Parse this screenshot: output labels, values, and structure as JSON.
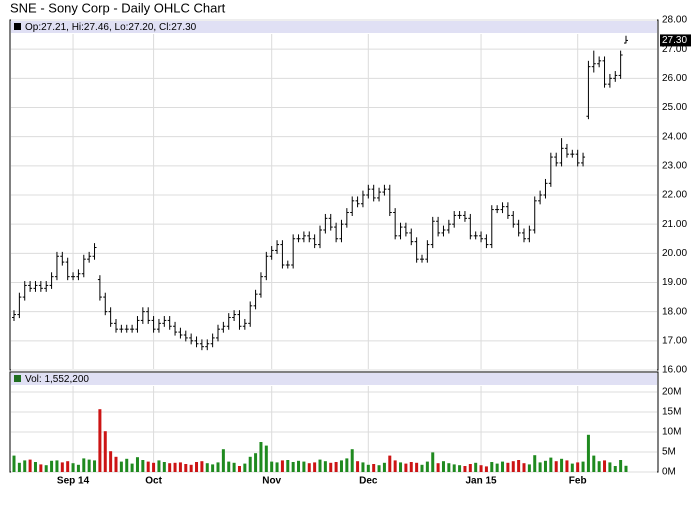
{
  "chart_data": [
    {
      "type": "ohlc",
      "title": "SNE - Sony Corp - Daily OHLC Chart",
      "legend": "Op:27.21, Hi:27.46, Lo:27.20, Cl:27.30",
      "color": "#000000",
      "grid": true,
      "categories": [
        null,
        null,
        null,
        null,
        null,
        null,
        null,
        null,
        null,
        null,
        null,
        "Sep 14",
        null,
        null,
        null,
        null,
        null,
        null,
        null,
        null,
        null,
        null,
        null,
        null,
        null,
        null,
        "Oct",
        null,
        null,
        null,
        null,
        null,
        null,
        null,
        null,
        null,
        null,
        null,
        null,
        null,
        null,
        null,
        null,
        null,
        null,
        null,
        null,
        null,
        "Nov",
        null,
        null,
        null,
        null,
        null,
        null,
        null,
        null,
        null,
        null,
        null,
        null,
        null,
        null,
        null,
        null,
        null,
        "Dec",
        null,
        null,
        null,
        null,
        null,
        null,
        null,
        null,
        null,
        null,
        null,
        null,
        null,
        null,
        null,
        null,
        null,
        null,
        null,
        null,
        "Jan 15",
        null,
        null,
        null,
        null,
        null,
        null,
        null,
        null,
        null,
        null,
        null,
        null,
        null,
        null,
        null,
        null,
        null,
        "Feb",
        null,
        null,
        null,
        null,
        null,
        null,
        null,
        null,
        null
      ],
      "open": [
        17.8,
        17.9,
        18.5,
        18.9,
        18.8,
        18.9,
        18.8,
        18.9,
        19.2,
        19.9,
        19.7,
        19.2,
        19.2,
        19.3,
        19.8,
        19.9,
        19.1,
        18.5,
        18.0,
        17.6,
        17.4,
        17.4,
        17.4,
        17.4,
        17.7,
        18.0,
        17.7,
        17.4,
        17.6,
        17.7,
        17.5,
        17.3,
        17.2,
        17.1,
        17.0,
        16.9,
        16.8,
        16.9,
        17.1,
        17.4,
        17.5,
        17.8,
        17.9,
        17.5,
        17.6,
        18.2,
        18.6,
        19.2,
        19.9,
        20.1,
        20.3,
        19.6,
        19.6,
        20.5,
        20.5,
        20.6,
        20.5,
        20.3,
        20.8,
        21.2,
        20.9,
        20.5,
        21.0,
        21.4,
        21.8,
        21.7,
        22.0,
        22.2,
        21.9,
        22.1,
        22.2,
        21.4,
        20.6,
        20.9,
        20.7,
        20.4,
        19.8,
        19.8,
        20.3,
        21.1,
        20.7,
        20.8,
        21.0,
        21.3,
        21.3,
        21.2,
        20.6,
        20.6,
        20.5,
        20.3,
        21.5,
        21.5,
        21.6,
        21.3,
        21.0,
        20.7,
        20.5,
        20.8,
        21.8,
        22.0,
        22.4,
        23.3,
        23.1,
        23.6,
        23.4,
        23.4,
        23.1,
        24.7,
        26.4,
        26.5,
        26.6,
        25.8,
        26.0,
        26.1,
        27.21
      ],
      "high": [
        18.05,
        18.65,
        19.05,
        19.05,
        19.05,
        19.05,
        19.05,
        19.35,
        20.05,
        20.05,
        19.85,
        19.35,
        19.45,
        19.95,
        20.05,
        20.35,
        19.25,
        18.65,
        18.15,
        17.75,
        17.55,
        17.55,
        17.55,
        17.85,
        18.15,
        18.15,
        17.85,
        17.75,
        17.85,
        17.85,
        17.65,
        17.45,
        17.35,
        17.25,
        17.15,
        17.05,
        17.05,
        17.25,
        17.55,
        17.65,
        17.95,
        18.05,
        18.05,
        17.75,
        18.35,
        18.75,
        19.35,
        20.05,
        20.25,
        20.45,
        20.45,
        19.75,
        20.65,
        20.65,
        20.75,
        20.75,
        20.65,
        20.95,
        21.35,
        21.35,
        21.05,
        21.15,
        21.55,
        21.95,
        21.95,
        22.15,
        22.35,
        22.35,
        22.25,
        22.35,
        22.35,
        21.55,
        21.05,
        21.05,
        20.85,
        20.55,
        19.95,
        20.45,
        21.25,
        21.25,
        20.95,
        21.15,
        21.45,
        21.45,
        21.45,
        21.35,
        20.75,
        20.75,
        20.65,
        21.65,
        21.65,
        21.75,
        21.75,
        21.45,
        21.15,
        20.85,
        20.95,
        21.95,
        22.15,
        22.55,
        23.45,
        23.45,
        23.95,
        23.75,
        23.55,
        23.55,
        23.45,
        26.6,
        26.95,
        26.75,
        26.75,
        26.15,
        26.25,
        26.95,
        27.46
      ],
      "low": [
        17.68,
        17.78,
        18.38,
        18.68,
        18.68,
        18.68,
        18.68,
        18.78,
        19.08,
        19.58,
        19.08,
        19.08,
        19.08,
        19.18,
        19.68,
        19.78,
        18.38,
        17.88,
        17.48,
        17.28,
        17.28,
        17.28,
        17.28,
        17.28,
        17.58,
        17.58,
        17.28,
        17.28,
        17.48,
        17.38,
        17.18,
        17.08,
        16.98,
        16.88,
        16.78,
        16.68,
        16.68,
        16.78,
        16.98,
        17.28,
        17.38,
        17.68,
        17.38,
        17.38,
        17.48,
        18.08,
        18.48,
        19.08,
        19.78,
        19.98,
        19.48,
        19.48,
        19.48,
        20.38,
        20.38,
        20.38,
        20.18,
        20.18,
        20.68,
        20.78,
        20.38,
        20.38,
        20.88,
        21.28,
        21.58,
        21.58,
        21.88,
        21.78,
        21.78,
        21.98,
        21.28,
        20.48,
        20.48,
        20.58,
        20.28,
        19.68,
        19.68,
        19.68,
        20.18,
        20.58,
        20.58,
        20.68,
        20.88,
        21.18,
        21.08,
        20.48,
        20.48,
        20.38,
        20.18,
        20.18,
        21.38,
        21.38,
        21.18,
        20.88,
        20.58,
        20.38,
        20.38,
        20.68,
        21.68,
        21.88,
        22.28,
        22.98,
        22.98,
        23.28,
        23.28,
        22.98,
        22.98,
        24.6,
        26.2,
        26.38,
        25.68,
        25.68,
        25.88,
        25.98,
        27.2
      ],
      "close": [
        17.9,
        18.5,
        18.9,
        18.8,
        18.9,
        18.8,
        18.9,
        19.2,
        19.9,
        19.7,
        19.2,
        19.2,
        19.3,
        19.8,
        19.9,
        20.2,
        18.5,
        18.0,
        17.6,
        17.4,
        17.4,
        17.4,
        17.4,
        17.7,
        18.0,
        17.7,
        17.4,
        17.6,
        17.7,
        17.5,
        17.3,
        17.2,
        17.1,
        17.0,
        16.9,
        16.8,
        16.9,
        17.1,
        17.4,
        17.5,
        17.8,
        17.9,
        17.5,
        17.6,
        18.2,
        18.6,
        19.2,
        19.9,
        20.1,
        20.3,
        19.6,
        19.6,
        20.5,
        20.5,
        20.6,
        20.5,
        20.3,
        20.8,
        21.2,
        20.9,
        20.5,
        21.0,
        21.4,
        21.8,
        21.7,
        22.0,
        22.2,
        21.9,
        22.1,
        22.2,
        21.4,
        20.6,
        20.9,
        20.7,
        20.4,
        19.8,
        19.8,
        20.3,
        21.1,
        20.7,
        20.8,
        21.0,
        21.3,
        21.3,
        21.2,
        20.6,
        20.6,
        20.5,
        20.3,
        21.5,
        21.5,
        21.6,
        21.3,
        21.0,
        20.7,
        20.5,
        20.8,
        21.8,
        22.0,
        22.4,
        23.3,
        23.1,
        23.6,
        23.4,
        23.4,
        23.1,
        23.3,
        26.4,
        26.5,
        26.6,
        25.8,
        26.0,
        26.1,
        26.8,
        27.3
      ],
      "last_price": {
        "value": 27.3,
        "label": "27.30"
      },
      "ylim": [
        16,
        28
      ],
      "yticks": [
        {
          "value": 16,
          "label": "16.00"
        },
        {
          "value": 17,
          "label": "17.00"
        },
        {
          "value": 18,
          "label": "18.00"
        },
        {
          "value": 19,
          "label": "19.00"
        },
        {
          "value": 20,
          "label": "20.00"
        },
        {
          "value": 21,
          "label": "21.00"
        },
        {
          "value": 22,
          "label": "22.00"
        },
        {
          "value": 23,
          "label": "23.00"
        },
        {
          "value": 24,
          "label": "24.00"
        },
        {
          "value": 25,
          "label": "25.00"
        },
        {
          "value": 26,
          "label": "26.00"
        },
        {
          "value": 27,
          "label": "27.00"
        },
        {
          "value": 28,
          "label": "28.00"
        }
      ]
    },
    {
      "type": "bar",
      "legend": "Vol: 1,552,200",
      "up_color": "#1f8a1f",
      "down_color": "#cc1414",
      "legend_color": "#1f6e1f",
      "grid": true,
      "values": [
        4100000,
        2300000,
        2900000,
        3100000,
        2500000,
        1900000,
        1700000,
        2800000,
        2900000,
        2400000,
        2700000,
        2200000,
        1800000,
        3400000,
        3100000,
        2900000,
        15700000,
        10200000,
        5200000,
        3800000,
        2600000,
        3300000,
        2100000,
        3700000,
        3000000,
        2600000,
        2300000,
        2900000,
        2500000,
        2200000,
        2300000,
        2400000,
        2000000,
        1800000,
        2500000,
        2700000,
        2200000,
        1900000,
        2400000,
        5700000,
        2600000,
        2300000,
        1500000,
        2100000,
        3800000,
        4700000,
        7500000,
        6600000,
        2600000,
        2400000,
        2900000,
        3000000,
        2500000,
        2800000,
        2600000,
        2200000,
        2400000,
        3100000,
        2700000,
        2300000,
        2500000,
        2900000,
        3400000,
        5700000,
        2700000,
        2400000,
        1800000,
        2000000,
        1700000,
        2300000,
        4100000,
        2900000,
        2400000,
        2100000,
        2500000,
        2300000,
        1800000,
        2600000,
        4900000,
        2200000,
        2700000,
        2200000,
        1900000,
        1700000,
        1500000,
        2000000,
        2300000,
        1700000,
        1400000,
        2500000,
        2100000,
        2600000,
        2300000,
        2700000,
        3000000,
        2200000,
        1900000,
        4200000,
        2400000,
        2800000,
        3600000,
        2700000,
        3300000,
        2900000,
        2100000,
        2400000,
        2600000,
        9300000,
        4100000,
        2700000,
        2900000,
        2400000,
        1500000,
        3000000,
        1552200
      ],
      "ylim": [
        0,
        25000000
      ],
      "yticks": [
        {
          "value": 0,
          "label": "0M"
        },
        {
          "value": 5000000,
          "label": "5M"
        },
        {
          "value": 10000000,
          "label": "10M"
        },
        {
          "value": 15000000,
          "label": "15M"
        },
        {
          "value": 20000000,
          "label": "20M"
        }
      ]
    }
  ]
}
